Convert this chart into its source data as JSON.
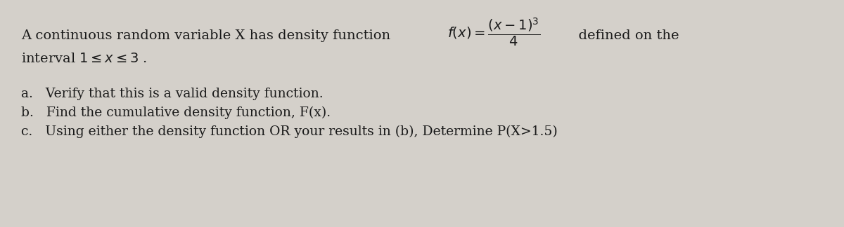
{
  "background_color": "#d4d0ca",
  "fig_width": 12.0,
  "fig_height": 3.24,
  "dpi": 100,
  "text_color": "#1a1a1a",
  "font_size_main": 14.0,
  "font_size_items": 13.5,
  "line1_prefix": "A continuous random variable X has density function  ",
  "line1_formula": "$f(x) = \\dfrac{(x-1)^3}{4}$",
  "line1_suffix": "  defined on the",
  "line2": "interval $1 \\leq x \\leq 3$ .",
  "item_a": "a.   Verify that this is a valid density function.",
  "item_b": "b.   Find the cumulative density function, F(x).",
  "item_c": "c.   Using either the density function OR your results in (b), Determine P(X>1.5)"
}
